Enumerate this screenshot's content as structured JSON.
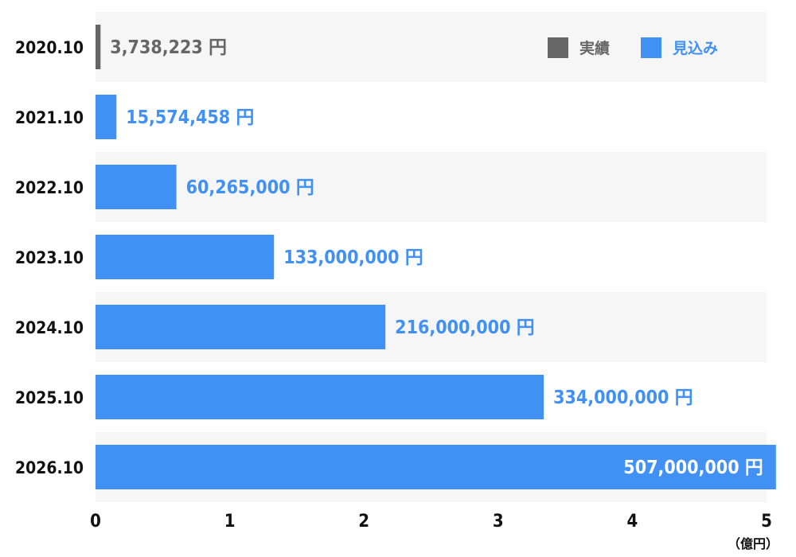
{
  "chart_data": {
    "type": "bar",
    "orientation": "horizontal",
    "categories": [
      "2020.10",
      "2021.10",
      "2022.10",
      "2023.10",
      "2024.10",
      "2025.10",
      "2026.10"
    ],
    "values": [
      3738223,
      15574458,
      60265000,
      133000000,
      216000000,
      334000000,
      507000000
    ],
    "value_labels": [
      "3,738,223 円",
      "15,574,458 円",
      "60,265,000 円",
      "133,000,000 円",
      "216,000,000 円",
      "334,000,000 円",
      "507,000,000 円"
    ],
    "series_kind": [
      "actual",
      "forecast",
      "forecast",
      "forecast",
      "forecast",
      "forecast",
      "forecast"
    ],
    "legend": [
      {
        "key": "actual",
        "label": "実績",
        "color": "#666666"
      },
      {
        "key": "forecast",
        "label": "見込み",
        "color": "#4191f5"
      }
    ],
    "legend_position": "top-right",
    "xlim": [
      0,
      5
    ],
    "x_ticks": [
      "0",
      "1",
      "2",
      "3",
      "4",
      "5"
    ],
    "x_unit": "（億円）",
    "grid": false,
    "band_colors": [
      "#f6f6f6",
      "#ffffff"
    ]
  }
}
